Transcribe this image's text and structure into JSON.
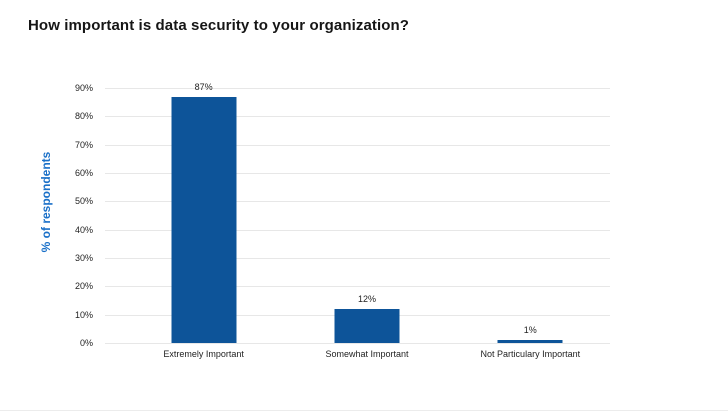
{
  "page": {
    "title": "How important is data security to your organization?"
  },
  "chart_data": {
    "type": "bar",
    "title": "How important is data security to your organization?",
    "categories": [
      "Extremely Important",
      "Somewhat Important",
      "Not Particulary Important"
    ],
    "values": [
      87,
      12,
      1
    ],
    "value_labels": [
      "87%",
      "12%",
      "1%"
    ],
    "xlabel": "",
    "ylabel": "% of respondents",
    "ylim": [
      0,
      90
    ],
    "ytick_step": 10,
    "ytick_labels": [
      "0%",
      "10%",
      "20%",
      "30%",
      "40%",
      "50%",
      "60%",
      "70%",
      "80%",
      "90%"
    ],
    "grid": true,
    "legend": false,
    "colors": {
      "bar": "#0d5499",
      "y_axis_title": "#1a70c8",
      "gridline": "#e7e7e7",
      "text": "#1f1f1f",
      "title": "#161616",
      "background": "#ffffff"
    }
  }
}
